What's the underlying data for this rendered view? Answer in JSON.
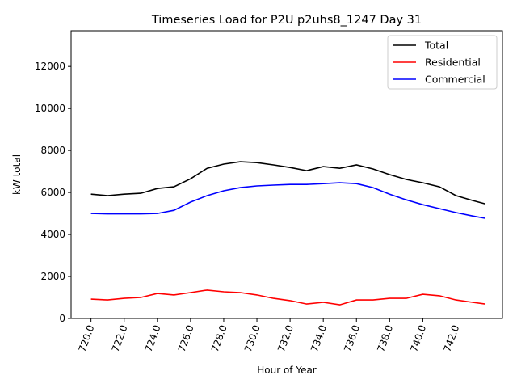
{
  "chart_data": {
    "type": "line",
    "title": "Timeseries Load for P2U p2uhs8_1247  Day 31",
    "xlabel": "Hour of Year",
    "ylabel": "kW total",
    "xlim": [
      718.8,
      744.8
    ],
    "ylim": [
      0,
      13700
    ],
    "xticks": [
      720,
      722,
      724,
      726,
      728,
      730,
      732,
      734,
      736,
      738,
      740,
      742
    ],
    "xtick_labels": [
      "720.0",
      "722.0",
      "724.0",
      "726.0",
      "728.0",
      "730.0",
      "732.0",
      "734.0",
      "736.0",
      "738.0",
      "740.0",
      "742.0"
    ],
    "yticks": [
      0,
      2000,
      4000,
      6000,
      8000,
      10000,
      12000
    ],
    "ytick_labels": [
      "0",
      "2000",
      "4000",
      "6000",
      "8000",
      "10000",
      "12000"
    ],
    "grid": false,
    "legend_position": "top-right",
    "x": [
      720,
      721,
      722,
      723,
      724,
      725,
      726,
      727,
      728,
      729,
      730,
      731,
      732,
      733,
      734,
      735,
      736,
      737,
      738,
      739,
      740,
      741,
      742,
      743,
      743.75
    ],
    "series": [
      {
        "name": "Total",
        "color": "#000000",
        "values": [
          5920,
          5850,
          5920,
          5960,
          6190,
          6270,
          6650,
          7150,
          7350,
          7460,
          7420,
          7310,
          7190,
          7040,
          7230,
          7150,
          7310,
          7120,
          6850,
          6620,
          6460,
          6270,
          5850,
          5620,
          5460
        ]
      },
      {
        "name": "Residential",
        "color": "#ff0000",
        "values": [
          920,
          880,
          960,
          1000,
          1190,
          1120,
          1230,
          1350,
          1270,
          1230,
          1120,
          960,
          850,
          690,
          770,
          650,
          880,
          880,
          960,
          960,
          1150,
          1080,
          880,
          770,
          690
        ]
      },
      {
        "name": "Commercial",
        "color": "#0000ff",
        "values": [
          5000,
          4980,
          4980,
          4980,
          5000,
          5150,
          5540,
          5850,
          6080,
          6230,
          6310,
          6350,
          6380,
          6380,
          6420,
          6460,
          6420,
          6230,
          5920,
          5650,
          5420,
          5230,
          5040,
          4880,
          4770
        ]
      }
    ]
  }
}
